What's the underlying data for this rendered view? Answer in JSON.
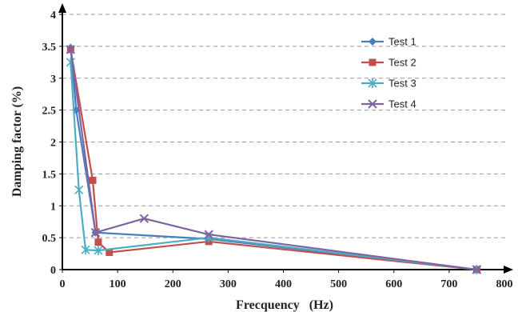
{
  "chart_data": {
    "type": "line",
    "xlabel": "Frecquency   (Hz)",
    "ylabel": "Damping factor (%)",
    "xlim": [
      0,
      800
    ],
    "ylim": [
      0,
      4
    ],
    "x_ticks": [
      "0",
      "100",
      "200",
      "300",
      "400",
      "500",
      "600",
      "700",
      "800"
    ],
    "y_ticks": [
      "0",
      "0.5",
      "1",
      "1.5",
      "2",
      "2.5",
      "3",
      "3.5",
      "4"
    ],
    "grid": "horizontal dashed",
    "legend_position": "top-right",
    "series": [
      {
        "name": "Test 1",
        "color": "#4a7ebb",
        "marker": "diamond",
        "x": [
          15,
          25,
          60,
          265,
          750
        ],
        "y": [
          3.48,
          2.5,
          0.58,
          0.48,
          0
        ]
      },
      {
        "name": "Test 2",
        "color": "#c0504d",
        "marker": "square",
        "x": [
          15,
          55,
          65,
          85,
          265,
          750
        ],
        "y": [
          3.45,
          1.4,
          0.43,
          0.27,
          0.44,
          0
        ]
      },
      {
        "name": "Test 3",
        "color": "#4bacc6",
        "marker": "asterisk",
        "x": [
          15,
          30,
          42,
          65,
          265,
          750
        ],
        "y": [
          3.25,
          1.25,
          0.31,
          0.3,
          0.5,
          0
        ]
      },
      {
        "name": "Test 4",
        "color": "#8064a2",
        "marker": "x",
        "x": [
          15,
          60,
          148,
          265,
          750
        ],
        "y": [
          3.45,
          0.58,
          0.8,
          0.55,
          0
        ]
      }
    ]
  }
}
